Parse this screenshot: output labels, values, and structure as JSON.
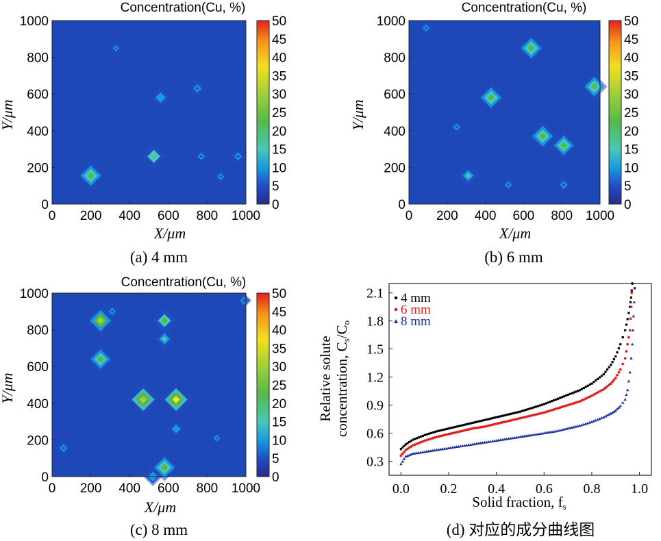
{
  "maps": [
    {
      "title": "Concentration(Cu, %)",
      "caption": "(a) 4 mm",
      "xlabel": "X/μm",
      "ylabel": "Y/μm",
      "xticks": [
        0,
        200,
        400,
        600,
        800,
        1000
      ],
      "yticks": [
        0,
        200,
        400,
        600,
        800,
        1000
      ],
      "colorbar_ticks": [
        0,
        5,
        10,
        15,
        20,
        25,
        30,
        35,
        40,
        45,
        50
      ],
      "hotspots": [
        {
          "x": 200,
          "y": 155,
          "value": 24,
          "size": 40
        },
        {
          "x": 525,
          "y": 260,
          "value": 20,
          "size": 38
        },
        {
          "x": 560,
          "y": 580,
          "value": 11,
          "size": 30
        },
        {
          "x": 750,
          "y": 630,
          "value": 9,
          "size": 24
        },
        {
          "x": 960,
          "y": 260,
          "value": 7,
          "size": 22
        },
        {
          "x": 870,
          "y": 150,
          "value": 6,
          "size": 20
        },
        {
          "x": 770,
          "y": 260,
          "value": 6,
          "size": 20
        },
        {
          "x": 330,
          "y": 850,
          "value": 6,
          "size": 18
        }
      ]
    },
    {
      "title": "Concentration(Cu, %)",
      "caption": "(b) 6 mm",
      "xlabel": "X/μm",
      "ylabel": "Y/μm",
      "xticks": [
        0,
        200,
        400,
        600,
        800,
        1000
      ],
      "yticks": [
        0,
        200,
        400,
        600,
        800,
        1000
      ],
      "colorbar_ticks": [
        0,
        5,
        10,
        15,
        20,
        25,
        30,
        35,
        40,
        45,
        50
      ],
      "hotspots": [
        {
          "x": 640,
          "y": 850,
          "value": 26,
          "size": 40
        },
        {
          "x": 430,
          "y": 580,
          "value": 26,
          "size": 40
        },
        {
          "x": 970,
          "y": 640,
          "value": 24,
          "size": 38
        },
        {
          "x": 700,
          "y": 370,
          "value": 28,
          "size": 40
        },
        {
          "x": 810,
          "y": 320,
          "value": 24,
          "size": 38
        },
        {
          "x": 310,
          "y": 155,
          "value": 16,
          "size": 32
        },
        {
          "x": 810,
          "y": 105,
          "value": 7,
          "size": 22
        },
        {
          "x": 250,
          "y": 420,
          "value": 6,
          "size": 20
        },
        {
          "x": 520,
          "y": 105,
          "value": 6,
          "size": 20
        },
        {
          "x": 90,
          "y": 960,
          "value": 6,
          "size": 20
        }
      ]
    },
    {
      "title": "Concentration(Cu, %)",
      "caption": "(c) 8 mm",
      "xlabel": "X/μm",
      "ylabel": "Y/μm",
      "xticks": [
        0,
        200,
        400,
        600,
        800,
        1000
      ],
      "yticks": [
        0,
        200,
        400,
        600,
        800,
        1000
      ],
      "colorbar_ticks": [
        0,
        5,
        10,
        15,
        20,
        25,
        30,
        35,
        40,
        45,
        50
      ],
      "hotspots": [
        {
          "x": 250,
          "y": 850,
          "value": 32,
          "size": 42
        },
        {
          "x": 580,
          "y": 850,
          "value": 22,
          "size": 38
        },
        {
          "x": 580,
          "y": 750,
          "value": 16,
          "size": 32
        },
        {
          "x": 250,
          "y": 640,
          "value": 24,
          "size": 38
        },
        {
          "x": 470,
          "y": 420,
          "value": 36,
          "size": 44
        },
        {
          "x": 640,
          "y": 420,
          "value": 38,
          "size": 44
        },
        {
          "x": 580,
          "y": 50,
          "value": 26,
          "size": 40
        },
        {
          "x": 640,
          "y": 260,
          "value": 10,
          "size": 26
        },
        {
          "x": 60,
          "y": 155,
          "value": 8,
          "size": 22
        },
        {
          "x": 990,
          "y": 960,
          "value": 8,
          "size": 22
        },
        {
          "x": 520,
          "y": 0,
          "value": 12,
          "size": 28
        },
        {
          "x": 310,
          "y": 900,
          "value": 7,
          "size": 20
        },
        {
          "x": 850,
          "y": 210,
          "value": 6,
          "size": 18
        }
      ]
    }
  ],
  "chart_data": {
    "type": "scatter",
    "caption": "(d) 对应的成分曲线图",
    "xlabel": "Solid fraction, f",
    "xlabel_sub": "s",
    "ylabel_line1": "Relative solute",
    "ylabel_line2": "concentration, C",
    "ylabel_sub1": "s",
    "ylabel_mid": "/C",
    "ylabel_sub2": "o",
    "xlim": [
      -0.05,
      1.05
    ],
    "ylim": [
      0.15,
      2.2
    ],
    "xticks": [
      "0.0",
      "0.2",
      "0.4",
      "0.6",
      "0.8",
      "1.0"
    ],
    "yticks": [
      "0.3",
      "0.6",
      "0.9",
      "1.2",
      "1.5",
      "1.8",
      "2.1"
    ],
    "legend_position": "top-left",
    "series": [
      {
        "name": "4 mm",
        "color": "#000000",
        "marker": "square",
        "points": [
          [
            0.0,
            0.43
          ],
          [
            0.02,
            0.48
          ],
          [
            0.05,
            0.53
          ],
          [
            0.1,
            0.58
          ],
          [
            0.15,
            0.62
          ],
          [
            0.2,
            0.65
          ],
          [
            0.25,
            0.68
          ],
          [
            0.3,
            0.71
          ],
          [
            0.35,
            0.74
          ],
          [
            0.4,
            0.77
          ],
          [
            0.45,
            0.8
          ],
          [
            0.5,
            0.83
          ],
          [
            0.55,
            0.87
          ],
          [
            0.6,
            0.91
          ],
          [
            0.65,
            0.96
          ],
          [
            0.7,
            1.01
          ],
          [
            0.75,
            1.06
          ],
          [
            0.8,
            1.13
          ],
          [
            0.85,
            1.23
          ],
          [
            0.88,
            1.33
          ],
          [
            0.9,
            1.42
          ],
          [
            0.92,
            1.55
          ],
          [
            0.94,
            1.7
          ],
          [
            0.95,
            1.82
          ],
          [
            0.96,
            1.95
          ],
          [
            0.965,
            2.05
          ],
          [
            0.97,
            2.2
          ]
        ]
      },
      {
        "name": "6 mm",
        "color": "#e0201b",
        "marker": "circle",
        "points": [
          [
            0.0,
            0.36
          ],
          [
            0.02,
            0.42
          ],
          [
            0.05,
            0.47
          ],
          [
            0.1,
            0.52
          ],
          [
            0.15,
            0.56
          ],
          [
            0.2,
            0.59
          ],
          [
            0.25,
            0.62
          ],
          [
            0.3,
            0.65
          ],
          [
            0.35,
            0.67
          ],
          [
            0.4,
            0.7
          ],
          [
            0.45,
            0.73
          ],
          [
            0.5,
            0.76
          ],
          [
            0.55,
            0.79
          ],
          [
            0.6,
            0.82
          ],
          [
            0.65,
            0.86
          ],
          [
            0.7,
            0.9
          ],
          [
            0.75,
            0.94
          ],
          [
            0.8,
            1.0
          ],
          [
            0.85,
            1.07
          ],
          [
            0.88,
            1.13
          ],
          [
            0.9,
            1.19
          ],
          [
            0.92,
            1.28
          ],
          [
            0.94,
            1.4
          ],
          [
            0.95,
            1.55
          ],
          [
            0.96,
            1.7
          ],
          [
            0.965,
            1.95
          ],
          [
            0.97,
            2.25
          ]
        ]
      },
      {
        "name": "8 mm",
        "color": "#1c2e9c",
        "marker": "triangle",
        "points": [
          [
            0.0,
            0.27
          ],
          [
            0.02,
            0.35
          ],
          [
            0.05,
            0.38
          ],
          [
            0.1,
            0.4
          ],
          [
            0.15,
            0.42
          ],
          [
            0.2,
            0.44
          ],
          [
            0.25,
            0.46
          ],
          [
            0.3,
            0.48
          ],
          [
            0.35,
            0.5
          ],
          [
            0.4,
            0.52
          ],
          [
            0.45,
            0.54
          ],
          [
            0.5,
            0.56
          ],
          [
            0.55,
            0.58
          ],
          [
            0.6,
            0.6
          ],
          [
            0.65,
            0.62
          ],
          [
            0.7,
            0.65
          ],
          [
            0.75,
            0.68
          ],
          [
            0.8,
            0.72
          ],
          [
            0.85,
            0.77
          ],
          [
            0.88,
            0.81
          ],
          [
            0.9,
            0.84
          ],
          [
            0.92,
            0.89
          ],
          [
            0.94,
            0.96
          ],
          [
            0.95,
            1.06
          ],
          [
            0.96,
            1.25
          ],
          [
            0.97,
            1.55
          ],
          [
            0.975,
            1.85
          ],
          [
            0.98,
            2.15
          ]
        ]
      }
    ]
  }
}
